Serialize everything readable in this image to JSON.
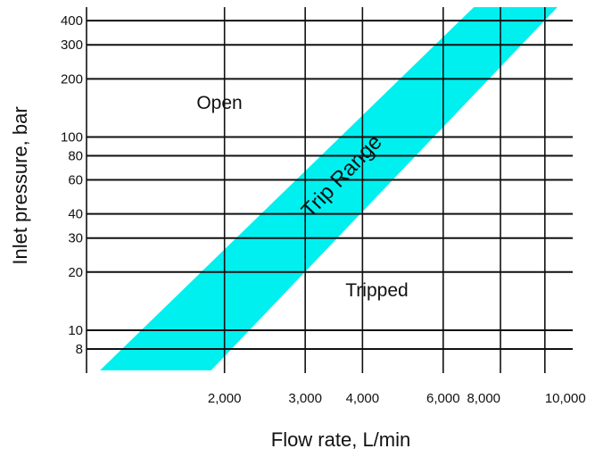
{
  "chart_data": {
    "type": "area",
    "title": "",
    "xlabel": "Flow rate, L/min",
    "ylabel": "Inlet pressure, bar",
    "x_scale": "log",
    "y_scale": "log",
    "xlim": [
      1000,
      11500
    ],
    "ylim": [
      6,
      470
    ],
    "grid": true,
    "colors": {
      "band": "#00f0f0",
      "grid": "#111111"
    },
    "x_ticks": [
      {
        "value": 2000,
        "label": "2,000"
      },
      {
        "value": 3000,
        "label": "3,000"
      },
      {
        "value": 4000,
        "label": "4,000"
      },
      {
        "value": 6000,
        "label": "6,000"
      },
      {
        "value": 8000,
        "label": "8,000"
      },
      {
        "value": 10000,
        "label": "10,000"
      }
    ],
    "y_ticks": [
      {
        "value": 8,
        "label": "8"
      },
      {
        "value": 10,
        "label": "10"
      },
      {
        "value": 20,
        "label": "20"
      },
      {
        "value": 30,
        "label": "30"
      },
      {
        "value": 40,
        "label": "40"
      },
      {
        "value": 60,
        "label": "60"
      },
      {
        "value": 80,
        "label": "80"
      },
      {
        "value": 100,
        "label": "100"
      },
      {
        "value": 200,
        "label": "200"
      },
      {
        "value": 300,
        "label": "300"
      },
      {
        "value": 400,
        "label": "400"
      }
    ],
    "x_gridlines": [
      1000,
      2000,
      3000,
      4000,
      6000,
      8000,
      10000
    ],
    "y_gridlines": [
      8,
      10,
      20,
      30,
      40,
      60,
      80,
      100,
      200,
      300,
      400
    ],
    "band": {
      "name": "Trip Range",
      "lower_edge": [
        [
          1870,
          6.2
        ],
        [
          10650,
          470
        ]
      ],
      "upper_edge": [
        [
          1070,
          6.2
        ],
        [
          7000,
          470
        ]
      ]
    },
    "annotations": [
      {
        "text": "Open",
        "x": 1950,
        "y": 140
      },
      {
        "text": "Tripped",
        "x": 4300,
        "y": 15
      },
      {
        "text": "Trip Range",
        "x": 3620,
        "y": 62
      }
    ]
  }
}
